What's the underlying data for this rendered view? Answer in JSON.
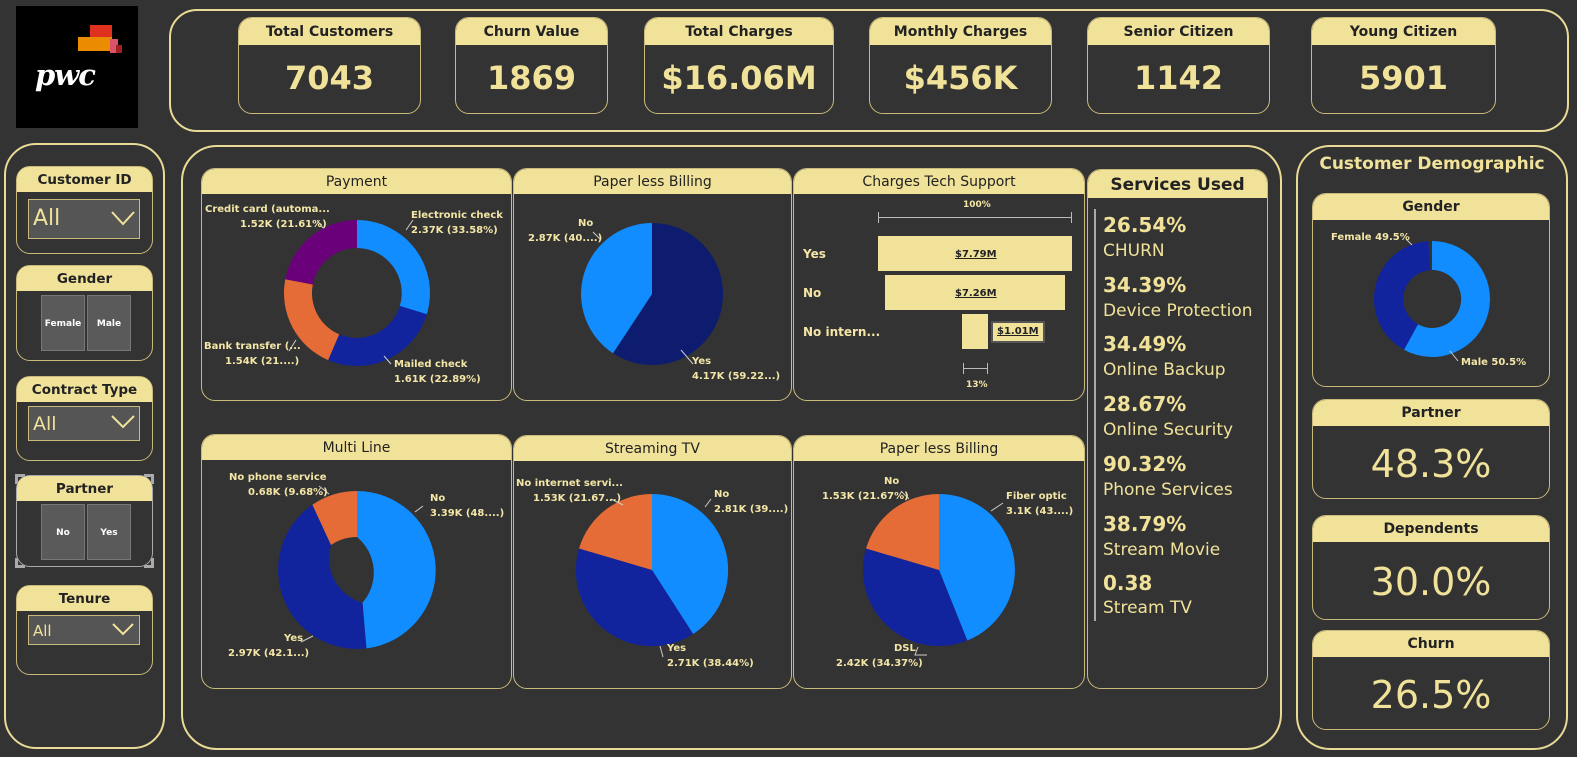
{
  "logo": {
    "text": "pwc"
  },
  "kpis": [
    {
      "label": "Total Customers",
      "value": "7043"
    },
    {
      "label": "Churn Value",
      "value": "1869"
    },
    {
      "label": "Total Charges",
      "value": "$16.06M"
    },
    {
      "label": "Monthly Charges",
      "value": "$456K"
    },
    {
      "label": "Senior Citizen",
      "value": "1142"
    },
    {
      "label": "Young Citizen",
      "value": "5901"
    }
  ],
  "filters": {
    "customer_id": {
      "label": "Customer ID",
      "value": "All"
    },
    "gender": {
      "label": "Gender",
      "options": [
        "Female",
        "Male"
      ]
    },
    "contract_type": {
      "label": "Contract Type",
      "value": "All"
    },
    "partner": {
      "label": "Partner",
      "options": [
        "No",
        "Yes"
      ]
    },
    "tenure": {
      "label": "Tenure",
      "value": "All"
    }
  },
  "colors": {
    "accent": "#f1e29a",
    "bg": "#333333",
    "blue_light": "#118dff",
    "blue_dark": "#12239e",
    "navy": "#0d1c6e",
    "orange": "#e66c37",
    "purple": "#6b007b"
  },
  "charts": {
    "payment": {
      "title": "Payment",
      "labels": [
        "Electronic check",
        "2.37K (33.58%)",
        "Mailed check",
        "1.61K (22.89%)",
        "Bank transfer (...",
        "1.54K (21....)",
        "Credit card (automa...",
        "1.52K (21.61%)"
      ]
    },
    "paperless1": {
      "title": "Paper less Billing",
      "labels": [
        "No",
        "2.87K (40....)",
        "Yes",
        "4.17K (59.22...)"
      ]
    },
    "tech_support": {
      "title": "Charges Tech Support",
      "top_pct": "100%",
      "bottom_pct": "13%",
      "rows": [
        {
          "label": "Yes",
          "value": "$7.79M"
        },
        {
          "label": "No",
          "value": "$7.26M"
        },
        {
          "label": "No intern...",
          "value": "$1.01M"
        }
      ]
    },
    "multiline": {
      "title": "Multi Line",
      "labels": [
        "No phone service",
        "0.68K (9.68%)",
        "No",
        "3.39K (48....)",
        "Yes",
        "2.97K (42.1...)"
      ]
    },
    "streaming": {
      "title": "Streaming TV",
      "labels": [
        "No internet servi...",
        "1.53K (21.67...)",
        "No",
        "2.81K (39....)",
        "Yes",
        "2.71K (38.44%)"
      ]
    },
    "paperless2": {
      "title": "Paper less Billing",
      "labels": [
        "No",
        "1.53K (21.67%)",
        "Fiber optic",
        "3.1K (43....)",
        "DSL",
        "2.42K (34.37%)"
      ]
    }
  },
  "chart_data": [
    {
      "type": "pie",
      "title": "Payment",
      "categories": [
        "Electronic check",
        "Mailed check",
        "Bank transfer (automatic)",
        "Credit card (automatic)"
      ],
      "values": [
        2.37,
        1.61,
        1.54,
        1.52
      ],
      "percent": [
        33.58,
        22.89,
        21.9,
        21.61
      ]
    },
    {
      "type": "pie",
      "title": "Paper less Billing",
      "categories": [
        "Yes",
        "No"
      ],
      "values": [
        4.17,
        2.87
      ],
      "percent": [
        59.22,
        40.78
      ]
    },
    {
      "type": "bar",
      "title": "Charges Tech Support",
      "categories": [
        "Yes",
        "No",
        "No internet service"
      ],
      "values": [
        7.79,
        7.26,
        1.01
      ]
    },
    {
      "type": "pie",
      "title": "Multi Line",
      "categories": [
        "No",
        "Yes",
        "No phone service"
      ],
      "values": [
        3.39,
        2.97,
        0.68
      ],
      "percent": [
        48.1,
        42.2,
        9.68
      ]
    },
    {
      "type": "pie",
      "title": "Streaming TV",
      "categories": [
        "No",
        "Yes",
        "No internet service"
      ],
      "values": [
        2.81,
        2.71,
        1.53
      ],
      "percent": [
        39.9,
        38.44,
        21.67
      ]
    },
    {
      "type": "pie",
      "title": "Paper less Billing",
      "categories": [
        "Fiber optic",
        "DSL",
        "No"
      ],
      "values": [
        3.1,
        2.42,
        1.53
      ],
      "percent": [
        43.96,
        34.37,
        21.67
      ]
    },
    {
      "type": "pie",
      "title": "Gender",
      "categories": [
        "Male",
        "Female"
      ],
      "values": [
        50.5,
        49.5
      ]
    }
  ],
  "services": {
    "title": "Services Used",
    "items": [
      {
        "value": "26.54%",
        "label": "CHURN"
      },
      {
        "value": "34.39%",
        "label": "Device Protection"
      },
      {
        "value": "34.49%",
        "label": "Online Backup"
      },
      {
        "value": "28.67%",
        "label": "Online Security"
      },
      {
        "value": "90.32%",
        "label": "Phone Services"
      },
      {
        "value": "38.79%",
        "label": "Stream Movie"
      },
      {
        "value": "0.38",
        "label": "Stream TV"
      }
    ]
  },
  "demographic": {
    "title": "Customer Demographic",
    "gender": {
      "title": "Gender",
      "female_label": "Female 49.5%",
      "male_label": "Male 50.5%"
    },
    "partner": {
      "title": "Partner",
      "value": "48.3%"
    },
    "dependents": {
      "title": "Dependents",
      "value": "30.0%"
    },
    "churn": {
      "title": "Churn",
      "value": "26.5%"
    }
  }
}
